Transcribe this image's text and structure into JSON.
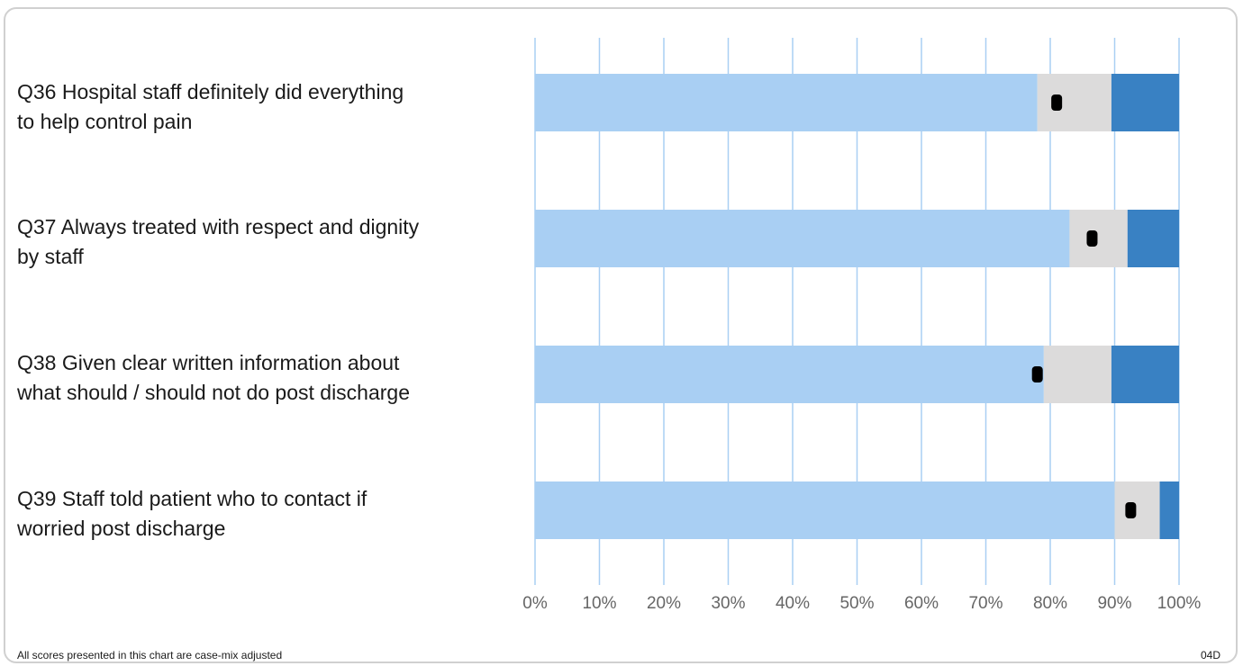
{
  "chart_data": {
    "type": "bar",
    "stacked": true,
    "orientation": "horizontal",
    "categories": [
      "Q36 Hospital staff definitely did everything to help control pain",
      "Q37 Always treated with respect and dignity by staff",
      "Q38 Given clear written information about what should / should not do post discharge",
      "Q39 Staff told patient who to contact if worried post discharge"
    ],
    "series": [
      {
        "values": [
          78,
          83,
          79,
          90
        ],
        "color": "#a9cff3"
      },
      {
        "values": [
          11.5,
          9,
          10.5,
          7
        ],
        "color": "#dcdbdb"
      },
      {
        "values": [
          10.5,
          8,
          10.5,
          3
        ],
        "color": "#3981c3"
      }
    ],
    "markers": [
      81,
      86.5,
      78,
      92.5
    ],
    "marker_color": "#000000",
    "xlim": [
      0,
      100
    ],
    "x_ticks": [
      "0%",
      "10%",
      "20%",
      "30%",
      "40%",
      "50%",
      "60%",
      "70%",
      "80%",
      "90%",
      "100%"
    ],
    "grid": true,
    "grid_color": "#a9cff3"
  },
  "labels": {
    "q36": [
      "Q36 Hospital staff definitely did everything",
      "to help control pain"
    ],
    "q37": [
      "Q37 Always treated with respect and dignity",
      "by staff"
    ],
    "q38": [
      "Q38 Given clear written information about",
      "what should / should not do post discharge"
    ],
    "q39": [
      "Q39 Staff told patient who to contact if",
      "worried post discharge"
    ]
  },
  "footnote": "All scores presented in this chart are case-mix adjusted",
  "code": "04D"
}
